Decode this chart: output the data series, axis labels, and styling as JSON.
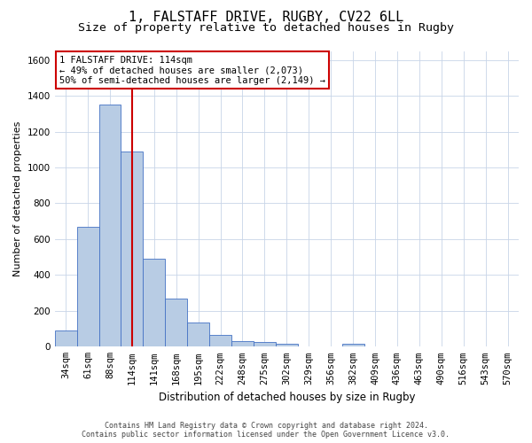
{
  "title_line1": "1, FALSTAFF DRIVE, RUGBY, CV22 6LL",
  "title_line2": "Size of property relative to detached houses in Rugby",
  "xlabel": "Distribution of detached houses by size in Rugby",
  "ylabel": "Number of detached properties",
  "categories": [
    "34sqm",
    "61sqm",
    "88sqm",
    "114sqm",
    "141sqm",
    "168sqm",
    "195sqm",
    "222sqm",
    "248sqm",
    "275sqm",
    "302sqm",
    "329sqm",
    "356sqm",
    "382sqm",
    "409sqm",
    "436sqm",
    "463sqm",
    "490sqm",
    "516sqm",
    "543sqm",
    "570sqm"
  ],
  "values": [
    90,
    670,
    1350,
    1090,
    490,
    270,
    135,
    65,
    30,
    28,
    18,
    0,
    0,
    18,
    0,
    0,
    0,
    0,
    0,
    0,
    0
  ],
  "bar_color": "#b8cce4",
  "bar_edge_color": "#4472c4",
  "vline_x_index": 3,
  "vline_color": "#cc0000",
  "ylim": [
    0,
    1650
  ],
  "yticks": [
    0,
    200,
    400,
    600,
    800,
    1000,
    1200,
    1400,
    1600
  ],
  "annotation_text": "1 FALSTAFF DRIVE: 114sqm\n← 49% of detached houses are smaller (2,073)\n50% of semi-detached houses are larger (2,149) →",
  "annotation_box_color": "#ffffff",
  "annotation_box_edge_color": "#cc0000",
  "grid_color": "#c8d4e8",
  "background_color": "#ffffff",
  "footer_text": "Contains HM Land Registry data © Crown copyright and database right 2024.\nContains public sector information licensed under the Open Government Licence v3.0.",
  "title_fontsize": 11,
  "subtitle_fontsize": 9.5,
  "tick_fontsize": 7.5,
  "ylabel_fontsize": 8,
  "xlabel_fontsize": 8.5,
  "annotation_fontsize": 7.5,
  "footer_fontsize": 6
}
